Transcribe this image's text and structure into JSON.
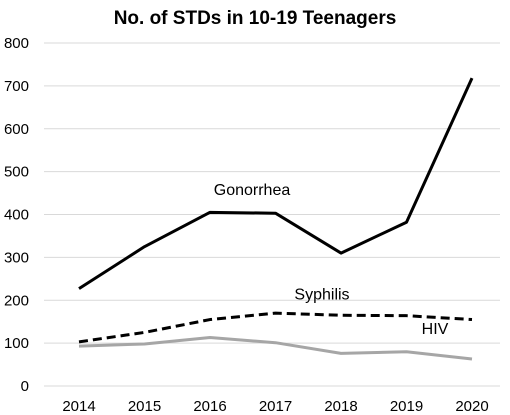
{
  "chart_data": {
    "type": "line",
    "title": "No. of STDs in 10-19 Teenagers",
    "xlabel": "",
    "ylabel": "",
    "categories": [
      "2014",
      "2015",
      "2016",
      "2017",
      "2018",
      "2019",
      "2020"
    ],
    "ylim": [
      0,
      800
    ],
    "yticks": [
      0,
      100,
      200,
      300,
      400,
      500,
      600,
      700,
      800
    ],
    "grid": true,
    "legend": "none",
    "series": [
      {
        "name": "Gonorrhea",
        "values": [
          227,
          325,
          405,
          403,
          310,
          382,
          718
        ],
        "color": "#000000",
        "dash": "solid"
      },
      {
        "name": "Syphilis",
        "values": [
          103,
          125,
          155,
          170,
          165,
          164,
          155
        ],
        "color": "#000000",
        "dash": "dashed"
      },
      {
        "name": "HIV",
        "values": [
          93,
          98,
          113,
          101,
          76,
          80,
          63
        ],
        "color": "#a6a6a6",
        "dash": "solid"
      }
    ]
  }
}
